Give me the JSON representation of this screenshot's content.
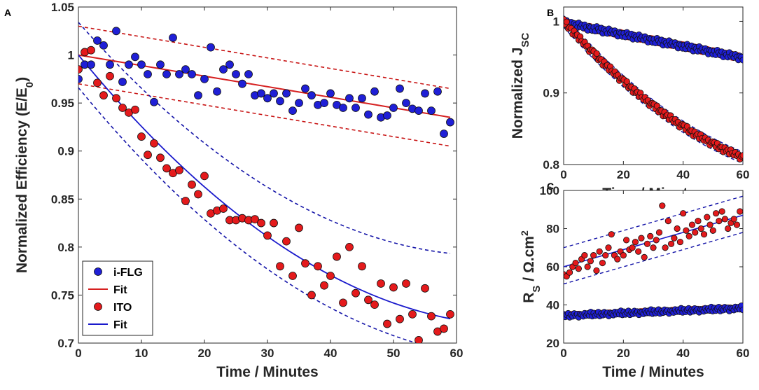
{
  "colors": {
    "blue_marker": "#1f1fd6",
    "red_marker": "#e41a1c",
    "red_line": "#d62020",
    "blue_line": "#1a1acc",
    "dashed_red": "#c81414",
    "dashed_blue": "#1414a8"
  },
  "chart_data": [
    {
      "panel": "A",
      "type": "scatter",
      "xlabel": "Time / Minutes",
      "ylabel_main": "Normalized Efficiency (E/E",
      "ylabel_sub": "0",
      "ylabel_tail": ")",
      "xlim": [
        0,
        60
      ],
      "ylim": [
        0.7,
        1.05
      ],
      "xticks": [
        "0",
        "10",
        "20",
        "30",
        "40",
        "50",
        "60"
      ],
      "yticks": [
        "0.7",
        "0.75",
        "0.8",
        "0.85",
        "0.9",
        "0.95",
        "1",
        "1.05"
      ],
      "legend": [
        {
          "label": "i-FLG",
          "kind": "marker",
          "color": "#1f1fd6"
        },
        {
          "label": "Fit",
          "kind": "line",
          "color": "#d62020"
        },
        {
          "label": "ITO",
          "kind": "marker",
          "color": "#e41a1c"
        },
        {
          "label": "Fit",
          "kind": "line",
          "color": "#1a1acc"
        }
      ],
      "series": [
        {
          "name": "i-FLG",
          "color": "#1f1fd6",
          "x": [
            0,
            1,
            2,
            3,
            4,
            5,
            6,
            7,
            8,
            9,
            10,
            11,
            12,
            13,
            14,
            15,
            16,
            17,
            18,
            19,
            20,
            21,
            22,
            23,
            24,
            25,
            26,
            27,
            28,
            29,
            30,
            31,
            32,
            33,
            34,
            35,
            36,
            37,
            38,
            39,
            40,
            41,
            42,
            43,
            44,
            45,
            46,
            47,
            48,
            49,
            50,
            51,
            52,
            53,
            54,
            55,
            56,
            57,
            58,
            59
          ],
          "y": [
            0.975,
            0.99,
            0.99,
            1.015,
            1.01,
            0.99,
            1.025,
            0.972,
            0.99,
            0.998,
            0.99,
            0.98,
            0.951,
            0.99,
            0.98,
            1.018,
            0.98,
            0.985,
            0.98,
            0.958,
            0.975,
            1.008,
            0.962,
            0.985,
            0.99,
            0.98,
            0.97,
            0.98,
            0.958,
            0.96,
            0.955,
            0.96,
            0.952,
            0.96,
            0.942,
            0.95,
            0.965,
            0.958,
            0.948,
            0.95,
            0.96,
            0.948,
            0.945,
            0.955,
            0.945,
            0.955,
            0.938,
            0.962,
            0.935,
            0.937,
            0.945,
            0.965,
            0.95,
            0.944,
            0.942,
            0.96,
            0.942,
            0.962,
            0.918,
            0.93
          ]
        },
        {
          "name": "ITO",
          "color": "#e41a1c",
          "x": [
            0,
            1,
            2,
            3,
            4,
            5,
            6,
            7,
            8,
            9,
            10,
            11,
            12,
            13,
            14,
            15,
            16,
            17,
            18,
            19,
            20,
            21,
            22,
            23,
            24,
            25,
            26,
            27,
            28,
            29,
            30,
            31,
            32,
            33,
            34,
            35,
            36,
            37,
            38,
            39,
            40,
            41,
            42,
            43,
            44,
            45,
            46,
            47,
            48,
            49,
            50,
            51,
            52,
            53,
            54,
            55,
            56,
            57,
            58,
            59
          ],
          "y": [
            0.985,
            1.003,
            1.005,
            0.971,
            0.958,
            0.978,
            0.955,
            0.945,
            0.94,
            0.943,
            0.915,
            0.896,
            0.908,
            0.893,
            0.882,
            0.877,
            0.88,
            0.848,
            0.865,
            0.855,
            0.874,
            0.835,
            0.838,
            0.84,
            0.828,
            0.828,
            0.83,
            0.828,
            0.829,
            0.825,
            0.812,
            0.825,
            0.78,
            0.806,
            0.77,
            0.82,
            0.783,
            0.75,
            0.78,
            0.76,
            0.77,
            0.79,
            0.742,
            0.8,
            0.752,
            0.78,
            0.745,
            0.74,
            0.762,
            0.72,
            0.758,
            0.725,
            0.762,
            0.73,
            0.703,
            0.757,
            0.728,
            0.712,
            0.715,
            0.73
          ]
        }
      ],
      "fits": [
        {
          "name": "Fit",
          "color": "#d62020",
          "kind": "linear",
          "a": 1.0,
          "b": -0.0011
        },
        {
          "name": "Fit",
          "color": "#1a1acc",
          "kind": "quadratic",
          "a": 1.0,
          "b": -0.008,
          "c": 5.67e-05
        }
      ]
    },
    {
      "panel": "B",
      "type": "scatter",
      "xlabel": "Time / Minutes",
      "ylabel_main": "Normalized J",
      "ylabel_sub": "SC",
      "xlim": [
        0,
        60
      ],
      "ylim": [
        0.8,
        1.02
      ],
      "xticks": [
        "0",
        "20",
        "40",
        "60"
      ],
      "yticks": [
        "0.8",
        "0.9",
        "1"
      ],
      "series": [
        {
          "name": "i-FLG",
          "color": "#1f1fd6",
          "model": {
            "kind": "linear",
            "a": 0.998,
            "b": -0.00082
          },
          "noise": [
            0.002,
            -0.003,
            0.004,
            0.001,
            -0.002,
            0.003,
            -0.004,
            0.002,
            0.0,
            -0.003,
            0.004,
            -0.001,
            0.002,
            -0.002,
            0.003,
            0.0,
            -0.004,
            0.002,
            0.001,
            -0.003
          ]
        },
        {
          "name": "ITO",
          "color": "#e41a1c",
          "model": {
            "kind": "quadratic",
            "a": 1.0,
            "b": -0.0047,
            "c": 2.55e-05
          },
          "noise": [
            0.003,
            -0.002,
            0.004,
            -0.003,
            0.001,
            0.002,
            -0.004,
            0.003,
            -0.001,
            0.002,
            -0.003,
            0.004,
            0.0,
            -0.002,
            0.003,
            -0.001,
            0.002,
            -0.004,
            0.001,
            0.003
          ]
        }
      ],
      "n_points": 120
    },
    {
      "panel": "C",
      "type": "scatter",
      "xlabel": "Time / Minutes",
      "ylabel_main": "R",
      "ylabel_sub": "S",
      "ylabel_tail": " / Ω.cm",
      "ylabel_sup": "2",
      "xlim": [
        0,
        60
      ],
      "ylim": [
        20,
        100
      ],
      "xticks": [
        "0",
        "20",
        "40",
        "60"
      ],
      "yticks": [
        "20",
        "40",
        "60",
        "80",
        "100"
      ],
      "series": [
        {
          "name": "i-FLG",
          "color": "#1f1fd6",
          "model": {
            "kind": "linear",
            "a": 34.3,
            "b": 0.065
          },
          "noise": [
            0.8,
            -0.6,
            0.4,
            1.2,
            -0.9,
            0.3,
            -0.5,
            1.0,
            -0.2,
            0.6,
            -1.1,
            0.5,
            0.2,
            -0.7,
            0.9,
            -0.3,
            0.7,
            -0.4,
            1.4,
            -0.8
          ]
        },
        {
          "name": "ITO",
          "color": "#e41a1c",
          "x": [
            0,
            1,
            2,
            3,
            4,
            5,
            6,
            7,
            8,
            9,
            10,
            11,
            12,
            13,
            14,
            15,
            16,
            17,
            18,
            19,
            20,
            21,
            22,
            23,
            24,
            25,
            26,
            27,
            28,
            29,
            30,
            31,
            32,
            33,
            34,
            35,
            36,
            37,
            38,
            39,
            40,
            41,
            42,
            43,
            44,
            45,
            46,
            47,
            48,
            49,
            50,
            51,
            52,
            53,
            54,
            55,
            56,
            57,
            58,
            59
          ],
          "y": [
            56,
            55,
            57,
            60,
            62,
            59,
            64,
            66,
            60,
            63,
            66,
            58,
            68,
            62,
            66,
            70,
            77,
            66,
            64,
            68,
            66,
            74,
            69,
            70,
            73,
            68,
            75,
            65,
            72,
            76,
            70,
            74,
            78,
            92,
            70,
            84,
            72,
            75,
            80,
            73,
            88,
            79,
            76,
            82,
            78,
            84,
            80,
            77,
            86,
            82,
            79,
            88,
            84,
            89,
            85,
            80,
            83,
            85,
            82,
            89
          ]
        }
      ],
      "fits": [
        {
          "color": "#1a1acc",
          "kind": "linear",
          "a": 60.0,
          "b": 0.45
        },
        {
          "color": "#d62020",
          "kind": "linear",
          "a": 34.5,
          "b": 0.065
        }
      ]
    }
  ]
}
